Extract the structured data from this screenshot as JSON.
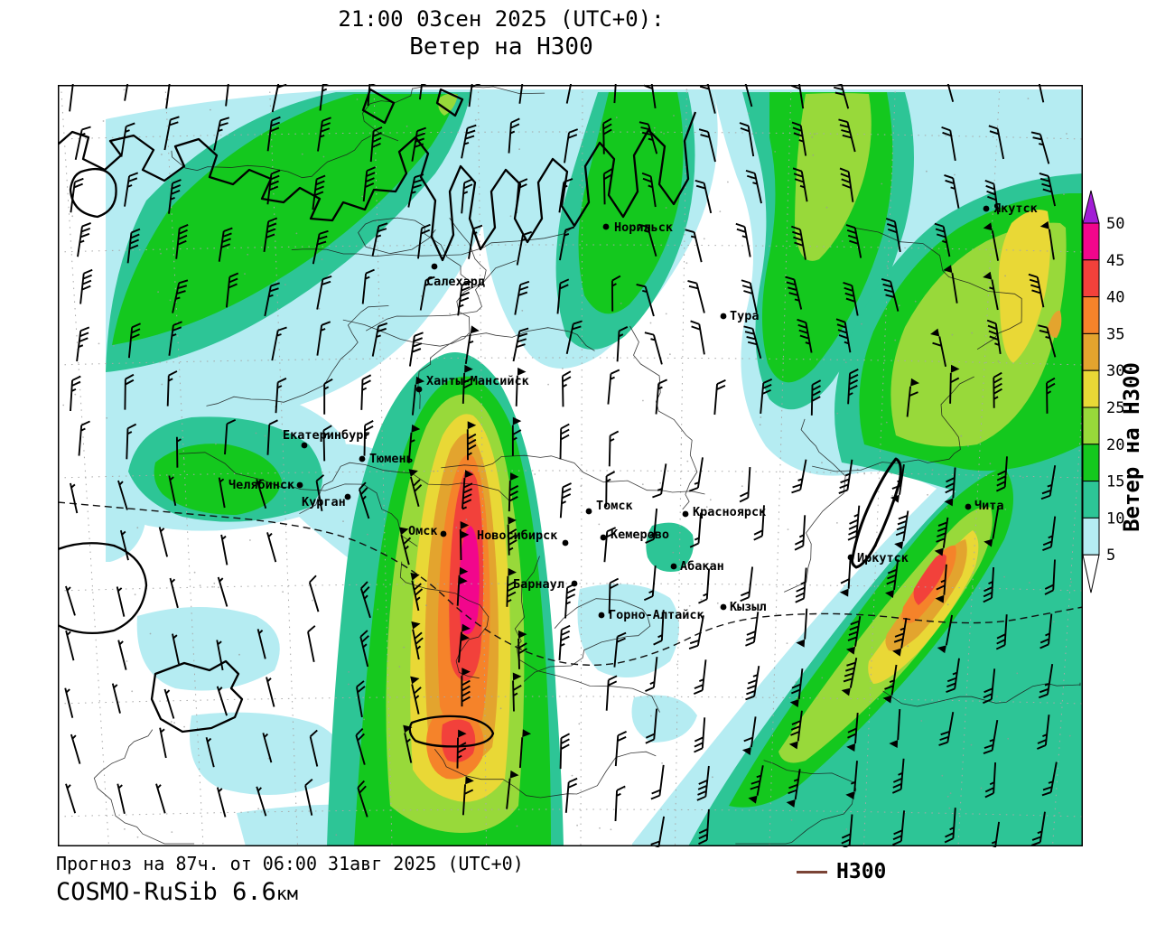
{
  "title": {
    "line1": "21:00 03сен 2025 (UTC+0):",
    "line2": "Ветер на H300"
  },
  "footer": {
    "forecast_line": "Прогноз на 87ч. от 06:00 31авг 2025 (UTC+0)",
    "model_name": "COSMO-RuSib 6.6",
    "model_unit": "км"
  },
  "legend": {
    "label": "H300",
    "line_color": "#7b4436"
  },
  "colorbar": {
    "title": "Ветер на H300",
    "ticks": [
      5,
      10,
      15,
      20,
      25,
      30,
      35,
      40,
      45,
      50
    ],
    "interval_colors": [
      "#b5ecf2",
      "#2dc596",
      "#14c81e",
      "#98d93a",
      "#e9d836",
      "#e3a42e",
      "#f5832a",
      "#f2413b",
      "#f2068c"
    ],
    "over_color": "#a21dd6",
    "under_color": "#ffffff"
  },
  "map": {
    "cities": [
      {
        "name": "Норильск",
        "dot": [
          607,
          157
        ],
        "label": [
          616,
          162
        ]
      },
      {
        "name": "Салехард",
        "dot": [
          417,
          201
        ],
        "label": [
          408,
          222
        ]
      },
      {
        "name": "Ханты-Мансийск",
        "dot": [
          400,
          337
        ],
        "label": [
          408,
          332
        ]
      },
      {
        "name": "Екатеринбург",
        "dot": [
          273,
          399
        ],
        "label": [
          249,
          392
        ]
      },
      {
        "name": "Тюмень",
        "dot": [
          337,
          414
        ],
        "label": [
          345,
          418
        ]
      },
      {
        "name": "Челябинск",
        "dot": [
          268,
          443
        ],
        "label": [
          189,
          447
        ]
      },
      {
        "name": "Курган",
        "dot": [
          321,
          456
        ],
        "label": [
          270,
          466
        ]
      },
      {
        "name": "Омск",
        "dot": [
          427,
          497
        ],
        "label": [
          388,
          498
        ]
      },
      {
        "name": "Новосибирск",
        "dot": [
          562,
          507
        ],
        "label": [
          464,
          503
        ]
      },
      {
        "name": "Томск",
        "dot": [
          588,
          472
        ],
        "label": [
          596,
          470
        ]
      },
      {
        "name": "Кемерово",
        "dot": [
          604,
          501
        ],
        "label": [
          612,
          502
        ]
      },
      {
        "name": "Красноярск",
        "dot": [
          695,
          475
        ],
        "label": [
          703,
          477
        ]
      },
      {
        "name": "Абакан",
        "dot": [
          682,
          533
        ],
        "label": [
          689,
          537
        ]
      },
      {
        "name": "Барнаул",
        "dot": [
          572,
          552
        ],
        "label": [
          504,
          557
        ]
      },
      {
        "name": "Горно-Алтайск",
        "dot": [
          602,
          587
        ],
        "label": [
          610,
          591
        ]
      },
      {
        "name": "Кызыл",
        "dot": [
          737,
          578
        ],
        "label": [
          744,
          582
        ]
      },
      {
        "name": "Иркутск",
        "dot": [
          878,
          523
        ],
        "label": [
          885,
          528
        ]
      },
      {
        "name": "Чита",
        "dot": [
          1008,
          467
        ],
        "label": [
          1015,
          470
        ]
      },
      {
        "name": "Якутск",
        "dot": [
          1028,
          137
        ],
        "label": [
          1036,
          141
        ]
      },
      {
        "name": "Тура",
        "dot": [
          737,
          256
        ],
        "label": [
          744,
          260
        ]
      }
    ]
  }
}
